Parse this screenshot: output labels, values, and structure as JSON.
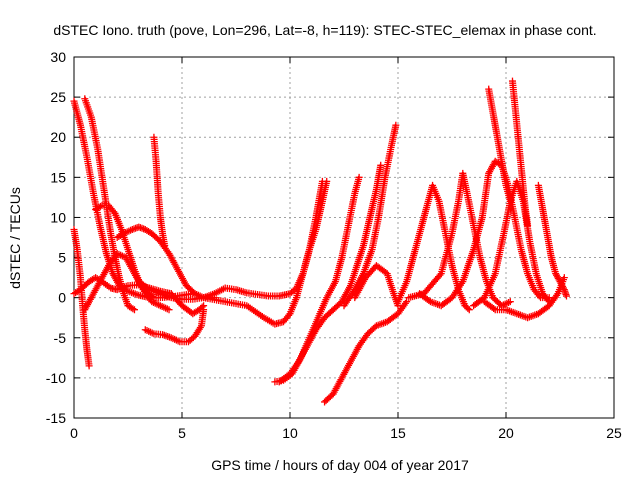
{
  "chart_data": {
    "type": "scatter",
    "title": "dSTEC Iono. truth (pove, Lon=296, Lat=-8, h=119): STEC-STEC_elemax in phase cont.",
    "xlabel": "GPS time / hours of day 004 of year 2017",
    "ylabel": "dSTEC  / TECUs",
    "xlim": [
      0,
      25
    ],
    "ylim": [
      -15,
      30
    ],
    "xticks": [
      0,
      5,
      10,
      15,
      20,
      25
    ],
    "yticks": [
      -15,
      -10,
      -5,
      0,
      5,
      10,
      15,
      20,
      25,
      30
    ],
    "grid": true,
    "marker": "plus",
    "color": "#ff0000",
    "series": [
      {
        "points": [
          [
            0.0,
            24.5
          ],
          [
            0.3,
            21.5
          ],
          [
            0.6,
            17.5
          ],
          [
            0.9,
            13.0
          ],
          [
            1.2,
            9.0
          ],
          [
            1.5,
            5.5
          ],
          [
            1.8,
            3.0
          ],
          [
            2.1,
            1.5
          ],
          [
            2.5,
            0.8
          ],
          [
            3.0,
            0.3
          ],
          [
            3.5,
            0.0
          ],
          [
            4.0,
            0.0
          ],
          [
            4.5,
            0.1
          ],
          [
            5.0,
            0.3
          ],
          [
            5.5,
            0.5
          ]
        ]
      },
      {
        "points": [
          [
            0.5,
            24.8
          ],
          [
            0.8,
            22.5
          ],
          [
            1.1,
            18.5
          ],
          [
            1.3,
            15.0
          ],
          [
            1.5,
            11.5
          ],
          [
            1.7,
            8.0
          ],
          [
            1.9,
            5.0
          ],
          [
            2.1,
            2.5
          ],
          [
            2.3,
            0.5
          ],
          [
            2.5,
            -1.0
          ],
          [
            2.8,
            -1.5
          ]
        ]
      },
      {
        "points": [
          [
            0.0,
            8.5
          ],
          [
            0.15,
            6.0
          ],
          [
            0.3,
            2.5
          ],
          [
            0.4,
            -1.0
          ],
          [
            0.5,
            -4.0
          ],
          [
            0.6,
            -6.5
          ],
          [
            0.7,
            -8.5
          ]
        ]
      },
      {
        "points": [
          [
            0.0,
            0.5
          ],
          [
            0.3,
            1.0
          ],
          [
            0.7,
            2.0
          ],
          [
            1.0,
            2.5
          ],
          [
            1.3,
            2.0
          ],
          [
            1.7,
            1.2
          ],
          [
            2.0,
            1.0
          ],
          [
            2.5,
            1.5
          ],
          [
            3.0,
            1.6
          ],
          [
            3.5,
            1.2
          ],
          [
            4.0,
            0.8
          ],
          [
            4.5,
            0.5
          ]
        ]
      },
      {
        "points": [
          [
            0.5,
            -1.5
          ],
          [
            0.8,
            0.0
          ],
          [
            1.2,
            2.0
          ],
          [
            1.6,
            4.0
          ],
          [
            2.0,
            5.5
          ],
          [
            2.4,
            5.0
          ],
          [
            2.8,
            3.0
          ],
          [
            3.2,
            1.0
          ],
          [
            3.6,
            -0.5
          ],
          [
            4.0,
            -1.0
          ],
          [
            4.4,
            -1.5
          ]
        ]
      },
      {
        "points": [
          [
            1.0,
            11.0
          ],
          [
            1.3,
            11.5
          ],
          [
            1.6,
            11.5
          ],
          [
            1.9,
            10.5
          ],
          [
            2.2,
            8.5
          ],
          [
            2.5,
            6.0
          ],
          [
            2.8,
            3.5
          ],
          [
            3.1,
            1.5
          ],
          [
            3.4,
            0.5
          ],
          [
            3.7,
            0.0
          ]
        ]
      },
      {
        "points": [
          [
            2.0,
            7.5
          ],
          [
            2.3,
            8.0
          ],
          [
            2.7,
            8.5
          ],
          [
            3.0,
            8.8
          ],
          [
            3.3,
            8.5
          ],
          [
            3.6,
            8.0
          ],
          [
            4.0,
            7.0
          ],
          [
            4.4,
            5.5
          ],
          [
            4.8,
            3.5
          ],
          [
            5.2,
            1.5
          ],
          [
            5.6,
            0.5
          ],
          [
            6.0,
            0.0
          ],
          [
            6.5,
            0.0
          ]
        ]
      },
      {
        "points": [
          [
            3.7,
            20.0
          ],
          [
            3.8,
            17.0
          ],
          [
            3.9,
            13.0
          ],
          [
            4.0,
            10.0
          ],
          [
            4.1,
            8.0
          ],
          [
            4.2,
            6.5
          ]
        ]
      },
      {
        "points": [
          [
            3.3,
            -4.0
          ],
          [
            3.7,
            -4.5
          ],
          [
            4.1,
            -4.6
          ],
          [
            4.5,
            -5.0
          ],
          [
            4.9,
            -5.5
          ],
          [
            5.3,
            -5.5
          ],
          [
            5.6,
            -4.8
          ],
          [
            5.9,
            -3.5
          ],
          [
            6.0,
            -1.5
          ]
        ]
      },
      {
        "points": [
          [
            3.0,
            2.0
          ],
          [
            3.5,
            1.0
          ],
          [
            4.0,
            0.5
          ],
          [
            4.5,
            0.0
          ],
          [
            5.0,
            -0.2
          ],
          [
            5.5,
            -0.2
          ],
          [
            6.0,
            0.0
          ],
          [
            6.5,
            0.5
          ],
          [
            7.0,
            1.2
          ],
          [
            7.5,
            1.0
          ],
          [
            8.0,
            0.6
          ],
          [
            8.5,
            0.4
          ],
          [
            9.0,
            0.2
          ],
          [
            9.5,
            0.2
          ],
          [
            10.0,
            0.5
          ],
          [
            10.3,
            1.2
          ],
          [
            10.6,
            3.0
          ],
          [
            10.9,
            6.0
          ],
          [
            11.2,
            10.0
          ],
          [
            11.5,
            14.5
          ]
        ]
      },
      {
        "points": [
          [
            4.5,
            0.5
          ],
          [
            5.0,
            -1.0
          ],
          [
            5.5,
            -2.0
          ],
          [
            5.8,
            -1.5
          ],
          [
            6.0,
            -1.0
          ]
        ]
      },
      {
        "points": [
          [
            6.0,
            0.0
          ],
          [
            7.0,
            -0.5
          ],
          [
            8.0,
            -1.0
          ],
          [
            8.8,
            -2.5
          ],
          [
            9.3,
            -3.3
          ],
          [
            9.7,
            -3.0
          ],
          [
            10.0,
            -2.0
          ],
          [
            10.3,
            0.0
          ],
          [
            10.6,
            3.0
          ],
          [
            10.9,
            6.0
          ],
          [
            11.2,
            8.5
          ],
          [
            11.5,
            12.0
          ],
          [
            11.7,
            14.5
          ]
        ]
      },
      {
        "points": [
          [
            9.3,
            -10.5
          ],
          [
            9.7,
            -10.3
          ],
          [
            10.1,
            -9.5
          ],
          [
            10.5,
            -7.5
          ],
          [
            10.9,
            -5.0
          ],
          [
            11.3,
            -2.5
          ],
          [
            11.7,
            0.0
          ],
          [
            12.1,
            2.0
          ],
          [
            12.4,
            5.0
          ],
          [
            12.7,
            9.0
          ],
          [
            13.0,
            13.0
          ],
          [
            13.2,
            15.0
          ]
        ]
      },
      {
        "points": [
          [
            9.5,
            -10.5
          ],
          [
            10.0,
            -9.5
          ],
          [
            10.4,
            -8.0
          ],
          [
            10.8,
            -6.0
          ],
          [
            11.2,
            -4.0
          ],
          [
            11.6,
            -2.5
          ],
          [
            12.0,
            -1.5
          ],
          [
            12.4,
            -0.5
          ],
          [
            12.8,
            1.5
          ],
          [
            13.1,
            4.0
          ],
          [
            13.4,
            6.5
          ],
          [
            13.7,
            10.0
          ],
          [
            14.0,
            13.5
          ],
          [
            14.2,
            16.5
          ]
        ]
      },
      {
        "points": [
          [
            11.6,
            -13.0
          ],
          [
            12.0,
            -12.0
          ],
          [
            12.4,
            -10.0
          ],
          [
            12.8,
            -8.0
          ],
          [
            13.2,
            -6.0
          ],
          [
            13.6,
            -4.5
          ],
          [
            14.0,
            -3.5
          ],
          [
            14.5,
            -3.0
          ],
          [
            15.0,
            -2.0
          ],
          [
            15.4,
            -0.5
          ]
        ]
      },
      {
        "points": [
          [
            12.5,
            -1.0
          ],
          [
            13.0,
            1.0
          ],
          [
            13.4,
            3.0
          ],
          [
            13.8,
            6.0
          ],
          [
            14.1,
            10.0
          ],
          [
            14.4,
            15.0
          ],
          [
            14.7,
            19.0
          ],
          [
            14.9,
            21.5
          ]
        ]
      },
      {
        "points": [
          [
            13.0,
            0.0
          ],
          [
            13.5,
            2.5
          ],
          [
            14.0,
            4.0
          ],
          [
            14.5,
            3.0
          ],
          [
            14.8,
            0.5
          ],
          [
            15.0,
            -1.0
          ]
        ]
      },
      {
        "points": [
          [
            15.0,
            -0.5
          ],
          [
            15.4,
            2.0
          ],
          [
            15.8,
            6.0
          ],
          [
            16.2,
            10.0
          ],
          [
            16.6,
            14.0
          ],
          [
            16.9,
            12.0
          ],
          [
            17.2,
            8.0
          ],
          [
            17.5,
            4.0
          ],
          [
            17.8,
            1.0
          ],
          [
            18.1,
            -1.0
          ],
          [
            18.3,
            -1.5
          ]
        ]
      },
      {
        "points": [
          [
            16.0,
            0.5
          ],
          [
            16.5,
            -0.5
          ],
          [
            17.0,
            -1.0
          ],
          [
            17.5,
            0.0
          ],
          [
            18.0,
            2.0
          ],
          [
            18.5,
            6.0
          ],
          [
            18.9,
            10.0
          ],
          [
            19.2,
            15.5
          ],
          [
            19.5,
            17.0
          ],
          [
            19.8,
            16.5
          ],
          [
            20.1,
            14.0
          ],
          [
            20.4,
            10.0
          ],
          [
            20.7,
            6.0
          ],
          [
            21.0,
            3.0
          ],
          [
            21.3,
            1.0
          ],
          [
            21.6,
            0.0
          ],
          [
            22.0,
            0.0
          ]
        ]
      },
      {
        "points": [
          [
            15.5,
            0.0
          ],
          [
            16.2,
            0.5
          ],
          [
            17.0,
            3.0
          ],
          [
            17.5,
            8.0
          ],
          [
            17.8,
            12.0
          ],
          [
            18.0,
            15.5
          ],
          [
            18.2,
            13.0
          ],
          [
            18.5,
            9.0
          ],
          [
            18.8,
            5.0
          ],
          [
            19.1,
            2.0
          ],
          [
            19.4,
            0.0
          ],
          [
            19.8,
            -1.0
          ],
          [
            20.2,
            -0.5
          ]
        ]
      },
      {
        "points": [
          [
            19.2,
            26.0
          ],
          [
            19.4,
            23.0
          ],
          [
            19.6,
            20.0
          ],
          [
            19.8,
            17.0
          ],
          [
            20.0,
            14.0
          ],
          [
            20.2,
            12.0
          ]
        ]
      },
      {
        "points": [
          [
            20.3,
            27.0
          ],
          [
            20.45,
            23.0
          ],
          [
            20.6,
            19.0
          ],
          [
            20.75,
            15.0
          ],
          [
            20.9,
            11.0
          ],
          [
            21.0,
            9.0
          ]
        ]
      },
      {
        "points": [
          [
            18.5,
            -1.0
          ],
          [
            19.0,
            0.0
          ],
          [
            19.5,
            3.0
          ],
          [
            19.9,
            8.0
          ],
          [
            20.2,
            12.0
          ],
          [
            20.5,
            14.5
          ],
          [
            20.8,
            12.0
          ],
          [
            21.1,
            7.0
          ],
          [
            21.4,
            3.0
          ],
          [
            21.7,
            0.5
          ],
          [
            22.0,
            -0.5
          ]
        ]
      },
      {
        "points": [
          [
            19.0,
            -0.5
          ],
          [
            19.5,
            -1.5
          ],
          [
            20.0,
            -1.5
          ],
          [
            20.5,
            -2.0
          ],
          [
            21.0,
            -2.5
          ],
          [
            21.5,
            -2.0
          ],
          [
            22.0,
            -1.0
          ],
          [
            22.4,
            0.5
          ],
          [
            22.7,
            2.5
          ]
        ]
      },
      {
        "points": [
          [
            21.5,
            14.0
          ],
          [
            21.7,
            11.0
          ],
          [
            21.9,
            8.0
          ],
          [
            22.1,
            5.0
          ],
          [
            22.3,
            3.0
          ],
          [
            22.5,
            2.0
          ],
          [
            22.7,
            1.0
          ],
          [
            22.8,
            0.2
          ]
        ]
      }
    ]
  }
}
